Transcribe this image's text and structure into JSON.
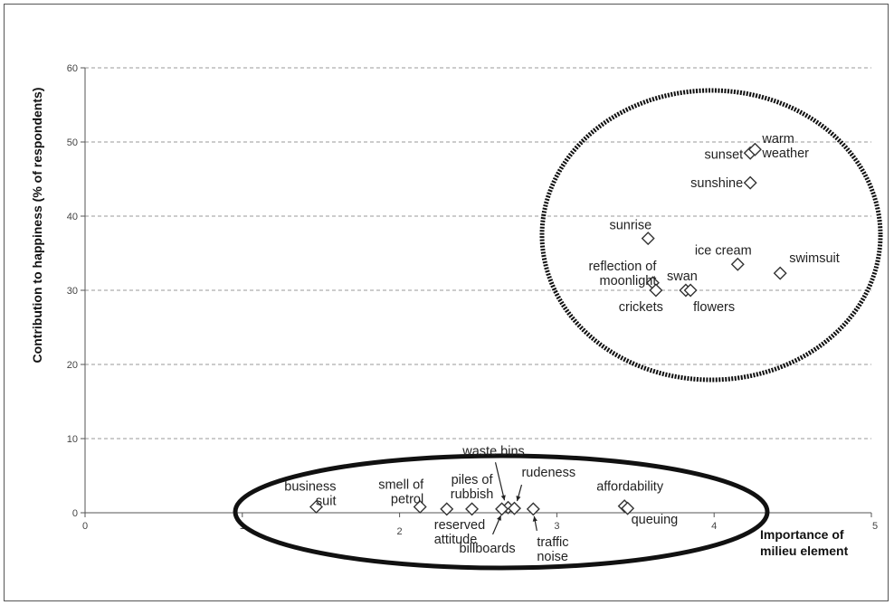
{
  "chart_data": {
    "type": "scatter",
    "xlabel": "Importance of milieu element",
    "ylabel": "Contribution to happiness (% of respondents)",
    "xlim": [
      0,
      5
    ],
    "ylim": [
      0,
      60
    ],
    "x_ticks": [
      0,
      1,
      2,
      3,
      4,
      5
    ],
    "y_ticks": [
      0,
      10,
      20,
      30,
      40,
      50,
      60
    ],
    "grid": "horizontal dashed",
    "marker": "open diamond",
    "points": [
      {
        "label": "sunset",
        "x": 4.23,
        "y": 48.5
      },
      {
        "label": "warm weather",
        "x": 4.26,
        "y": 49.0
      },
      {
        "label": "sunshine",
        "x": 4.23,
        "y": 44.5
      },
      {
        "label": "sunrise",
        "x": 3.58,
        "y": 37.0
      },
      {
        "label": "ice cream",
        "x": 4.15,
        "y": 33.5
      },
      {
        "label": "swimsuit",
        "x": 4.42,
        "y": 32.3
      },
      {
        "label": "reflection of moonlight",
        "x": 3.61,
        "y": 31.0
      },
      {
        "label": "swan",
        "x": 3.82,
        "y": 30.0
      },
      {
        "label": "flowers",
        "x": 3.85,
        "y": 30.0
      },
      {
        "label": "crickets",
        "x": 3.63,
        "y": 30.0
      },
      {
        "label": "business suit",
        "x": 1.47,
        "y": 0.8
      },
      {
        "label": "smell of petrol",
        "x": 2.13,
        "y": 0.8
      },
      {
        "label": "reserved attitude",
        "x": 2.3,
        "y": 0.5
      },
      {
        "label": "piles of rubbish",
        "x": 2.46,
        "y": 0.5
      },
      {
        "label": "waste bins",
        "x": 2.69,
        "y": 0.7
      },
      {
        "label": "billboards",
        "x": 2.65,
        "y": 0.5
      },
      {
        "label": "rudeness",
        "x": 2.73,
        "y": 0.6
      },
      {
        "label": "traffic noise",
        "x": 2.85,
        "y": 0.5
      },
      {
        "label": "affordability",
        "x": 3.43,
        "y": 0.9
      },
      {
        "label": "queuing",
        "x": 3.45,
        "y": 0.6
      }
    ],
    "clusters": [
      {
        "shape": "dotted ellipse",
        "members": [
          "sunset",
          "warm weather",
          "sunshine",
          "sunrise",
          "ice cream",
          "swimsuit",
          "reflection of moonlight",
          "swan",
          "flowers",
          "crickets"
        ]
      },
      {
        "shape": "solid ellipse",
        "members": [
          "business suit",
          "smell of petrol",
          "reserved attitude",
          "piles of rubbish",
          "waste bins",
          "billboards",
          "rudeness",
          "traffic noise",
          "affordability",
          "queuing"
        ]
      }
    ]
  },
  "labels": {
    "sunset": [
      "sunset"
    ],
    "warm weather": [
      "warm",
      "weather"
    ],
    "sunshine": [
      "sunshine"
    ],
    "sunrise": [
      "sunrise"
    ],
    "ice cream": [
      "ice cream"
    ],
    "swimsuit": [
      "swimsuit"
    ],
    "reflection of moonlight": [
      "reflection of",
      "moonlight"
    ],
    "swan": [
      "swan"
    ],
    "flowers": [
      "flowers"
    ],
    "crickets": [
      "crickets"
    ],
    "business suit": [
      "business",
      "suit"
    ],
    "smell of petrol": [
      "smell of",
      "petrol"
    ],
    "reserved attitude": [
      "reserved",
      "attitude"
    ],
    "piles of rubbish": [
      "piles of",
      "rubbish"
    ],
    "waste bins": [
      "waste bins"
    ],
    "billboards": [
      "billboards"
    ],
    "rudeness": [
      "rudeness"
    ],
    "traffic noise": [
      "traffic",
      "noise"
    ],
    "affordability": [
      "affordability"
    ],
    "queuing": [
      "queuing"
    ]
  },
  "xlabel_lines": [
    "Importance of",
    "milieu element"
  ]
}
